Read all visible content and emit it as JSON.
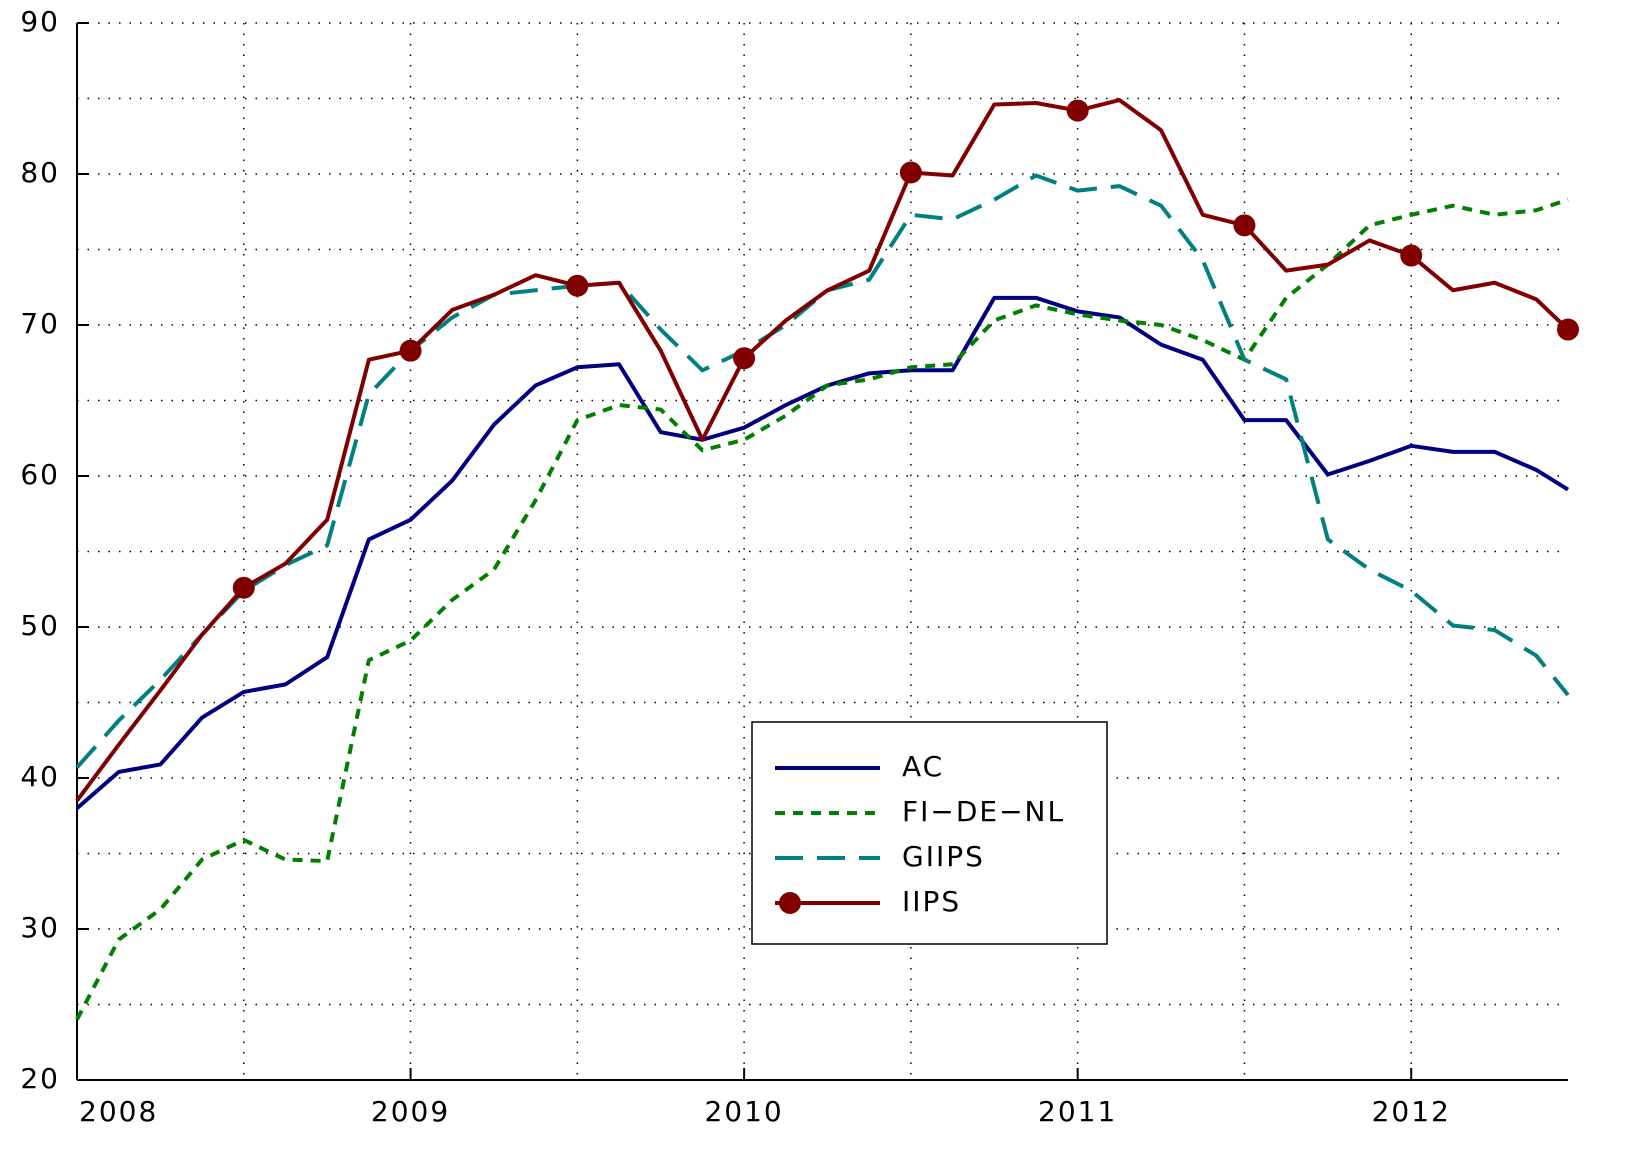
{
  "chart_data": {
    "type": "line",
    "x": [
      2008,
      2008.125,
      2008.25,
      2008.375,
      2008.5,
      2008.625,
      2008.75,
      2008.875,
      2009,
      2009.125,
      2009.25,
      2009.375,
      2009.5,
      2009.625,
      2009.75,
      2009.875,
      2010,
      2010.125,
      2010.25,
      2010.375,
      2010.5,
      2010.625,
      2010.75,
      2010.875,
      2011,
      2011.125,
      2011.25,
      2011.375,
      2011.5,
      2011.625,
      2011.75,
      2011.875,
      2012,
      2012.125,
      2012.25,
      2012.375,
      2012.47
    ],
    "series": [
      {
        "name": "AC",
        "color": "#000080",
        "linestyle": "solid",
        "values": [
          38,
          40.4,
          40.9,
          44,
          45.7,
          46.2,
          48,
          55.8,
          57.1,
          59.7,
          63.4,
          66,
          67.2,
          67.4,
          62.9,
          62.4,
          63.2,
          64.7,
          66,
          66.8,
          67,
          67,
          71.8,
          71.8,
          70.9,
          70.5,
          68.7,
          67.7,
          63.7,
          63.7,
          60.1,
          61,
          62,
          61.6,
          61.6,
          60.4,
          59.1
        ]
      },
      {
        "name": "FI−DE−NL",
        "color": "#008000",
        "linestyle": "dotted",
        "values": [
          24,
          29.3,
          31.3,
          34.6,
          35.9,
          34.6,
          34.5,
          47.8,
          49.1,
          51.8,
          53.8,
          58.4,
          63.7,
          64.7,
          64.4,
          61.7,
          62.4,
          64,
          66,
          66.4,
          67.2,
          67.4,
          70.3,
          71.3,
          70.7,
          70.3,
          70,
          69,
          67.7,
          71.8,
          74,
          76.6,
          77.3,
          77.9,
          77.3,
          77.6,
          78.3
        ]
      },
      {
        "name": "GIIPS",
        "color": "#008080",
        "linestyle": "dashed",
        "values": [
          40.7,
          43.8,
          46.5,
          49.5,
          52.4,
          54.1,
          55.4,
          65.4,
          68.3,
          70.5,
          72,
          72.3,
          72.6,
          72.8,
          69.7,
          67,
          68.3,
          70,
          72.3,
          73,
          77.3,
          77,
          78.3,
          79.9,
          78.9,
          79.2,
          77.9,
          74.3,
          67.7,
          66.4,
          55.8,
          53.8,
          52.4,
          50.1,
          49.8,
          48.1,
          45.5
        ]
      },
      {
        "name": "IIPS",
        "color": "#800000",
        "linestyle": "solid",
        "marker": "o",
        "values": [
          38.5,
          42.2,
          45.8,
          49.5,
          52.6,
          54.2,
          57.1,
          67.7,
          68.3,
          71,
          72,
          73.3,
          72.6,
          72.8,
          68.3,
          62.4,
          67.8,
          70.3,
          72.3,
          73.6,
          80.1,
          79.9,
          84.6,
          84.7,
          84.2,
          84.9,
          82.9,
          77.3,
          76.6,
          73.6,
          74,
          75.6,
          74.6,
          72.3,
          72.8,
          71.7,
          69.7
        ]
      }
    ],
    "xlim": [
      2008,
      2012.47
    ],
    "xticks": [
      2008,
      2009,
      2010,
      2011,
      2012
    ],
    "ylim": [
      20,
      90
    ],
    "yticks": [
      20,
      30,
      40,
      50,
      60,
      70,
      80,
      90
    ],
    "grid": true
  }
}
